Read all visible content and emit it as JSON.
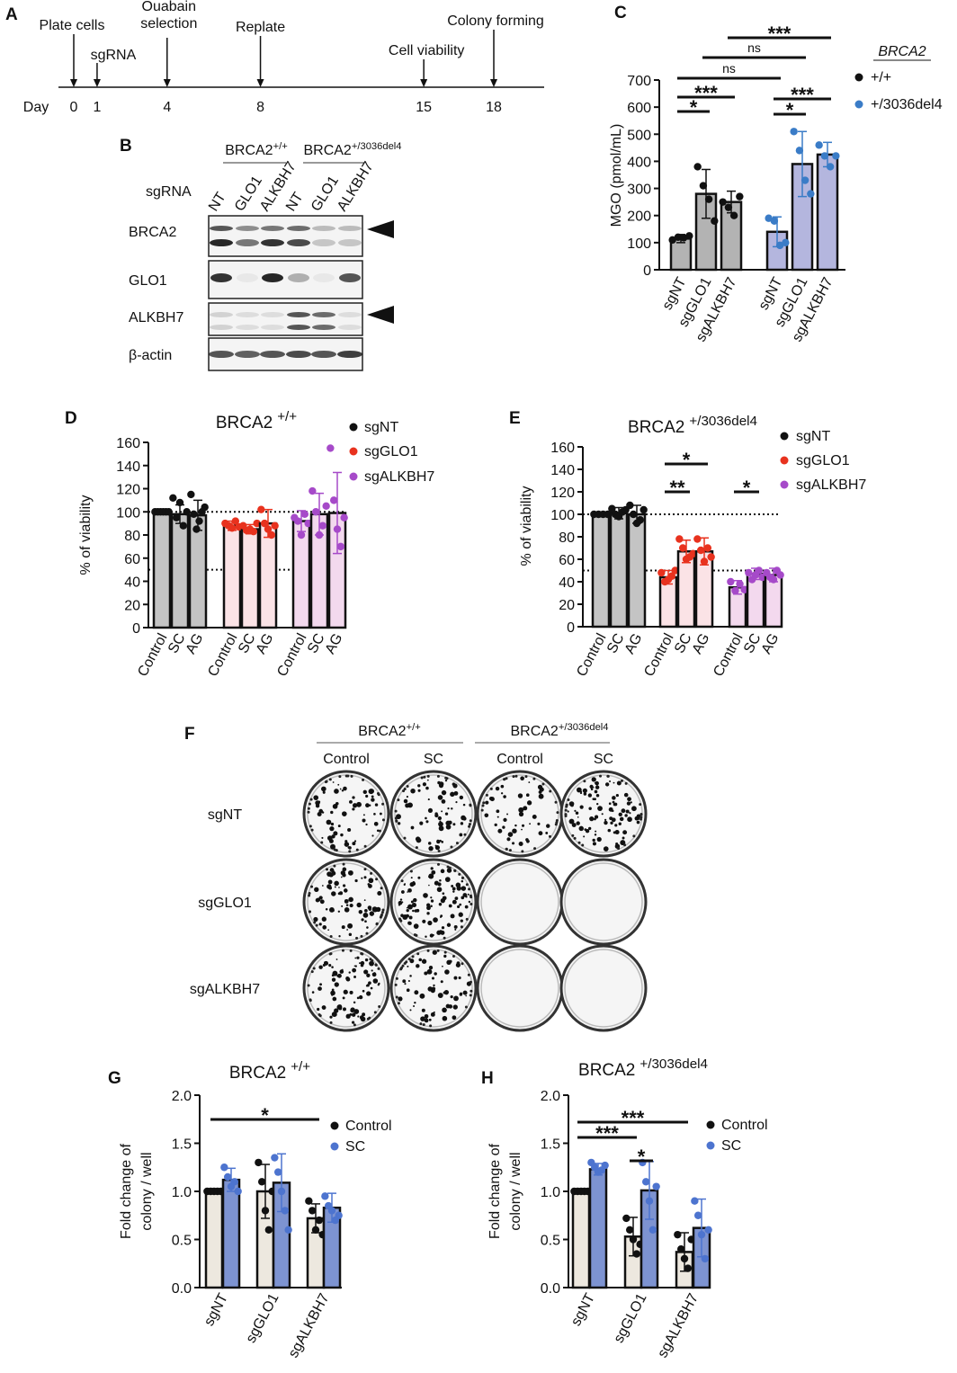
{
  "timeline": {
    "panel": "A",
    "axis_label": "Day",
    "events": [
      {
        "day": 0,
        "label": "Plate cells"
      },
      {
        "day": 1,
        "label": "sgRNA"
      },
      {
        "day": 4,
        "label": [
          "Ouabain",
          "selection"
        ]
      },
      {
        "day": 8,
        "label": "Replate"
      },
      {
        "day": 15,
        "label": "Cell viability"
      },
      {
        "day": 18,
        "label": "Colony forming"
      }
    ]
  },
  "blot": {
    "panel": "B",
    "lane_title": "sgRNA",
    "groups": [
      {
        "name": "BRCA2",
        "sup": "+/+"
      },
      {
        "name": "BRCA2",
        "sup": "+/3036del4"
      }
    ],
    "lanes": [
      "NT",
      "GLO1",
      "ALKBH7",
      "NT",
      "GLO1",
      "ALKBH7"
    ],
    "rows": [
      "BRCA2",
      "GLO1",
      "ALKBH7",
      "β-actin"
    ]
  },
  "colony": {
    "panel": "F",
    "groups": [
      {
        "name": "BRCA2",
        "sup": "+/+"
      },
      {
        "name": "BRCA2",
        "sup": "+/3036del4"
      }
    ],
    "columns": [
      "Control",
      "SC",
      "Control",
      "SC"
    ],
    "rows": [
      "sgNT",
      "sgGLO1",
      "sgALKBH7"
    ]
  },
  "chart_data": [
    {
      "type": "bar",
      "panel": "C",
      "x_grouping": "by_series",
      "ylabel": "MGO (pmol/mL)",
      "legend_title": "BRCA2",
      "categories": [
        "sgNT",
        "sgGLO1",
        "sgALKBH7"
      ],
      "ylim": [
        0,
        700
      ],
      "yticks": [
        0,
        100,
        200,
        300,
        400,
        500,
        600,
        700
      ],
      "series": [
        {
          "name": "+/+",
          "color": "#b3b3b3",
          "point_color": "#111111",
          "values": [
            115,
            280,
            250
          ],
          "errors": [
            15,
            90,
            40
          ],
          "points": [
            [
              110,
              120,
              118,
              125
            ],
            [
              380,
              310,
              260,
              180
            ],
            [
              250,
              230,
              200,
              270
            ]
          ]
        },
        {
          "name": "+/3036del4",
          "color": "#b4b6de",
          "point_color": "#3a7cc7",
          "values": [
            140,
            390,
            425
          ],
          "errors": [
            55,
            120,
            45
          ],
          "points": [
            [
              190,
              180,
              90,
              100
            ],
            [
              510,
              440,
              330,
              280
            ],
            [
              460,
              420,
              380,
              420
            ]
          ]
        }
      ],
      "brackets": [
        {
          "from": [
            0,
            0
          ],
          "to": [
            0,
            1
          ],
          "label": "*"
        },
        {
          "from": [
            0,
            0
          ],
          "to": [
            0,
            2
          ],
          "label": "***"
        },
        {
          "from": [
            1,
            0
          ],
          "to": [
            1,
            1
          ],
          "label": "*"
        },
        {
          "from": [
            1,
            0
          ],
          "to": [
            1,
            2
          ],
          "label": "***"
        },
        {
          "from": [
            0,
            0
          ],
          "to": [
            1,
            0
          ],
          "label": "ns"
        },
        {
          "from": [
            0,
            1
          ],
          "to": [
            1,
            1
          ],
          "label": "ns"
        },
        {
          "from": [
            0,
            2
          ],
          "to": [
            1,
            2
          ],
          "label": "***"
        }
      ]
    },
    {
      "type": "bar",
      "panel": "D",
      "x_grouping": "by_series",
      "title": "BRCA2",
      "title_sup": "+/+",
      "ylabel": "% of viability",
      "categories": [
        "Control",
        "SC",
        "AG"
      ],
      "ylim": [
        0,
        160
      ],
      "yticks": [
        0,
        20,
        40,
        60,
        80,
        100,
        120,
        140,
        160
      ],
      "ref_lines": [
        100,
        50
      ],
      "series": [
        {
          "name": "sgNT",
          "color": "#c4c4c4",
          "point_color": "#111111",
          "values": [
            100,
            98,
            97
          ],
          "errors": [
            1,
            8,
            13
          ],
          "points": [
            [
              100,
              100,
              100,
              100,
              100,
              100
            ],
            [
              112,
              95,
              108,
              88,
              100
            ],
            [
              115,
              98,
              85,
              92,
              100,
              104
            ]
          ]
        },
        {
          "name": "sgGLO1",
          "color": "#fbe3e6",
          "point_color": "#e8321e",
          "values": [
            88,
            85,
            90
          ],
          "errors": [
            4,
            4,
            12
          ],
          "points": [
            [
              90,
              88,
              86,
              92,
              87
            ],
            [
              88,
              84,
              85,
              83,
              90
            ],
            [
              102,
              90,
              85,
              80,
              88
            ]
          ]
        },
        {
          "name": "sgALKBH7",
          "color": "#f3d9ee",
          "point_color": "#a64ac9",
          "values": [
            92,
            98,
            99
          ],
          "errors": [
            9,
            18,
            35
          ],
          "points": [
            [
              95,
              92,
              80,
              98,
              90
            ],
            [
              118,
              100,
              80,
              88,
              105
            ],
            [
              155,
              110,
              85,
              70,
              95
            ]
          ]
        }
      ],
      "brackets": []
    },
    {
      "type": "bar",
      "panel": "E",
      "x_grouping": "by_series",
      "title": "BRCA2",
      "title_sup": "+/3036del4",
      "ylabel": "% of viability",
      "categories": [
        "Control",
        "SC",
        "AG"
      ],
      "ylim": [
        0,
        160
      ],
      "yticks": [
        0,
        20,
        40,
        60,
        80,
        100,
        120,
        140,
        160
      ],
      "ref_lines": [
        100,
        50
      ],
      "series": [
        {
          "name": "sgNT",
          "color": "#c4c4c4",
          "point_color": "#111111",
          "values": [
            100,
            101,
            100
          ],
          "errors": [
            1,
            5,
            8
          ],
          "points": [
            [
              100,
              100,
              100,
              100
            ],
            [
              105,
              100,
              98,
              102,
              104
            ],
            [
              108,
              100,
              92,
              95,
              104
            ]
          ]
        },
        {
          "name": "sgGLO1",
          "color": "#fbe3e6",
          "point_color": "#e8321e",
          "values": [
            44,
            67,
            67
          ],
          "errors": [
            6,
            10,
            12
          ],
          "points": [
            [
              48,
              40,
              42,
              45,
              50
            ],
            [
              78,
              70,
              60,
              62,
              65
            ],
            [
              78,
              68,
              58,
              70,
              62
            ]
          ]
        },
        {
          "name": "sgALKBH7",
          "color": "#f3d9ee",
          "point_color": "#a64ac9",
          "values": [
            35,
            47,
            46
          ],
          "errors": [
            6,
            5,
            6
          ],
          "points": [
            [
              40,
              32,
              38,
              33
            ],
            [
              48,
              42,
              46,
              50,
              44
            ],
            [
              48,
              44,
              42,
              50,
              46
            ]
          ]
        }
      ],
      "brackets": [
        {
          "from": [
            1,
            0
          ],
          "to": [
            1,
            1
          ],
          "label": "**"
        },
        {
          "from": [
            1,
            0
          ],
          "to": [
            1,
            2
          ],
          "label": "*"
        },
        {
          "from": [
            2,
            0
          ],
          "to": [
            2,
            1
          ],
          "label": "*"
        }
      ]
    },
    {
      "type": "bar",
      "panel": "G",
      "x_grouping": "by_category",
      "title": "BRCA2",
      "title_sup": "+/+",
      "ylabel": [
        "Fold change of",
        "colony / well"
      ],
      "categories": [
        "sgNT",
        "sgGLO1",
        "sgALKBH7"
      ],
      "ylim": [
        0,
        2
      ],
      "yticks": [
        {
          "value": 0,
          "label": "0.0"
        },
        0.5,
        {
          "value": 1,
          "label": "1.0"
        },
        1.5,
        {
          "value": 2,
          "label": "2.0"
        }
      ],
      "series": [
        {
          "name": "Control",
          "color": "#ede8df",
          "point_color": "#111111",
          "values": [
            1.0,
            1.0,
            0.72
          ],
          "errors": [
            0.01,
            0.28,
            0.15
          ],
          "points": [
            [
              1,
              1,
              1,
              1,
              1
            ],
            [
              1.3,
              1.1,
              0.8,
              0.6,
              1.0
            ],
            [
              0.9,
              0.8,
              0.6,
              0.7,
              0.55
            ]
          ]
        },
        {
          "name": "SC",
          "color": "#7d93d1",
          "point_color": "#4d74cf",
          "values": [
            1.12,
            1.09,
            0.83
          ],
          "errors": [
            0.12,
            0.3,
            0.15
          ],
          "points": [
            [
              1.25,
              1.15,
              1.05,
              1.1,
              1.0
            ],
            [
              1.35,
              1.2,
              1.0,
              0.8,
              0.6
            ],
            [
              0.95,
              0.85,
              0.8,
              0.7,
              0.75
            ]
          ]
        }
      ],
      "brackets": [
        {
          "from": [
            0,
            0
          ],
          "to": [
            0,
            2
          ],
          "label": "*"
        }
      ]
    },
    {
      "type": "bar",
      "panel": "H",
      "x_grouping": "by_category",
      "title": "BRCA2",
      "title_sup": "+/3036del4",
      "ylabel": [
        "Fold change of",
        "colony / well"
      ],
      "categories": [
        "sgNT",
        "sgGLO1",
        "sgALKBH7"
      ],
      "ylim": [
        0,
        2
      ],
      "yticks": [
        {
          "value": 0,
          "label": "0.0"
        },
        0.5,
        {
          "value": 1,
          "label": "1.0"
        },
        1.5,
        {
          "value": 2,
          "label": "2.0"
        }
      ],
      "series": [
        {
          "name": "Control",
          "color": "#ede8df",
          "point_color": "#111111",
          "values": [
            1.0,
            0.53,
            0.37
          ],
          "errors": [
            0.01,
            0.2,
            0.2
          ],
          "points": [
            [
              1,
              1,
              1,
              1,
              1
            ],
            [
              0.72,
              0.6,
              0.5,
              0.35,
              0.45
            ],
            [
              0.55,
              0.4,
              0.3,
              0.2,
              0.5
            ]
          ]
        },
        {
          "name": "SC",
          "color": "#7d93d1",
          "point_color": "#4d74cf",
          "values": [
            1.23,
            1.01,
            0.62
          ],
          "errors": [
            0.06,
            0.3,
            0.3
          ],
          "points": [
            [
              1.3,
              1.25,
              1.2,
              1.22,
              1.27
            ],
            [
              1.3,
              1.1,
              0.9,
              0.6,
              1.05
            ],
            [
              0.9,
              0.75,
              0.55,
              0.3,
              0.6
            ]
          ]
        }
      ],
      "brackets": [
        {
          "from": [
            0,
            0
          ],
          "to": [
            0,
            2
          ],
          "label": "***"
        },
        {
          "from": [
            0,
            0
          ],
          "to": [
            0,
            1
          ],
          "label": "***"
        },
        {
          "from": [
            0,
            1
          ],
          "to": [
            1,
            1
          ],
          "label": "*"
        }
      ]
    }
  ]
}
